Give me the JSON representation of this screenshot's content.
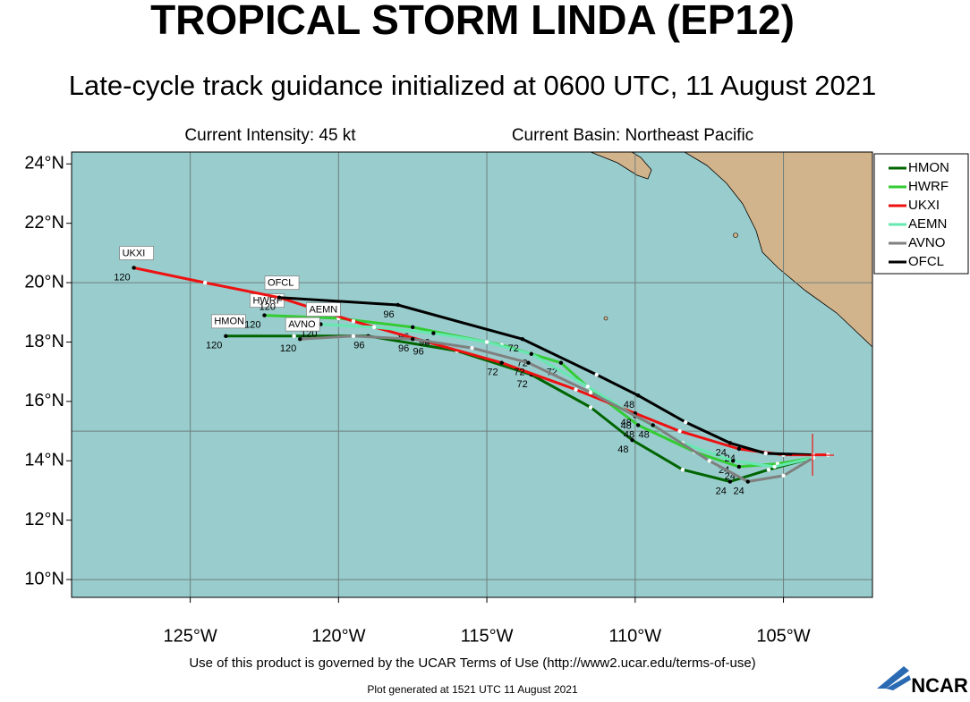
{
  "chart_data": {
    "type": "track",
    "title": "TROPICAL STORM LINDA (EP12)",
    "subtitle": "Late-cycle track guidance initialized at 0600 UTC, 11 August 2021",
    "intensity": "Current Intensity: 45 kt",
    "basin": "Current Basin: Northeast Pacific",
    "xlim": [
      -129,
      -102
    ],
    "ylim": [
      9.4,
      24.4
    ],
    "xticks": [
      {
        "value": -125,
        "label": "125°W"
      },
      {
        "value": -120,
        "label": "120°W"
      },
      {
        "value": -115,
        "label": "115°W"
      },
      {
        "value": -110,
        "label": "110°W"
      },
      {
        "value": -105,
        "label": "105°W"
      }
    ],
    "yticks": [
      {
        "value": 24,
        "label": "24°N"
      },
      {
        "value": 22,
        "label": "22°N"
      },
      {
        "value": 20,
        "label": "20°N"
      },
      {
        "value": 18,
        "label": "18°N"
      },
      {
        "value": 16,
        "label": "16°N"
      },
      {
        "value": 14,
        "label": "14°N"
      },
      {
        "value": 12,
        "label": "12°N"
      },
      {
        "value": 10,
        "label": "10°N"
      }
    ],
    "ygrid": [
      10,
      15,
      20
    ],
    "grid": true,
    "legend": "right",
    "series": [
      {
        "name": "HMON",
        "color": "#006400",
        "x": [
          -104.0,
          -105.5,
          -106.8,
          -108.4,
          -110.1,
          -111.5,
          -113.5,
          -116.0,
          -119.0,
          -121.5,
          -123.8
        ],
        "y": [
          14.1,
          13.7,
          13.3,
          13.7,
          14.7,
          15.8,
          16.9,
          17.7,
          18.2,
          18.2,
          18.2
        ],
        "tau": [
          null,
          null,
          24,
          null,
          48,
          null,
          72,
          null,
          96,
          null,
          120
        ]
      },
      {
        "name": "HWRF",
        "color": "#33cc33",
        "x": [
          -104.0,
          -105.2,
          -106.5,
          -108.0,
          -109.9,
          -111.5,
          -112.5,
          -114.5,
          -117.5,
          -120.0,
          -122.5
        ],
        "y": [
          14.1,
          13.9,
          13.8,
          14.3,
          15.2,
          16.4,
          17.3,
          17.9,
          18.5,
          18.8,
          18.9
        ],
        "tau": [
          null,
          null,
          24,
          null,
          48,
          null,
          72,
          null,
          96,
          null,
          120
        ]
      },
      {
        "name": "UKXI",
        "color": "#ee1111",
        "x": [
          -103.5,
          -105.0,
          -106.5,
          -108.5,
          -110.0,
          -112.0,
          -114.5,
          -117.0,
          -119.5,
          -122.0,
          -124.5,
          -126.9
        ],
        "y": [
          14.2,
          14.2,
          14.4,
          15.0,
          15.6,
          16.4,
          17.3,
          18.0,
          18.7,
          19.5,
          20.0,
          20.5
        ],
        "tau": [
          null,
          null,
          24,
          null,
          48,
          null,
          72,
          96,
          null,
          null,
          null,
          120
        ]
      },
      {
        "name": "AEMN",
        "color": "#66e8b0",
        "x": [
          -104.0,
          -105.3,
          -106.7,
          -108.4,
          -110.0,
          -111.6,
          -113.5,
          -115.0,
          -116.8,
          -118.8,
          -120.6
        ],
        "y": [
          14.1,
          13.8,
          14.0,
          14.6,
          15.5,
          16.5,
          17.6,
          18.0,
          18.3,
          18.5,
          18.6
        ],
        "tau": [
          null,
          null,
          24,
          null,
          48,
          null,
          72,
          null,
          96,
          null,
          120
        ]
      },
      {
        "name": "AVNO",
        "color": "#808080",
        "x": [
          -104.0,
          -105.0,
          -106.2,
          -107.5,
          -109.4,
          -111.5,
          -113.6,
          -115.5,
          -117.5,
          -119.5,
          -121.3
        ],
        "y": [
          14.1,
          13.5,
          13.3,
          14.0,
          15.2,
          16.3,
          17.3,
          17.8,
          18.1,
          18.2,
          18.1
        ],
        "tau": [
          null,
          null,
          24,
          null,
          48,
          null,
          72,
          null,
          96,
          null,
          120
        ]
      },
      {
        "name": "OFCL",
        "color": "#000000",
        "x": [
          -104.0,
          -105.6,
          -106.8,
          -108.3,
          -109.9,
          -111.3,
          -113.8,
          -118.0,
          -122.0
        ],
        "y": [
          14.2,
          14.25,
          14.6,
          15.3,
          16.2,
          16.9,
          18.1,
          19.25,
          19.5
        ],
        "tau": [
          null,
          null,
          24,
          null,
          48,
          null,
          72,
          96,
          120
        ]
      }
    ],
    "footer": "Use of this product is governed by the UCAR Terms of Use (http://www2.ucar.edu/terms-of-use)",
    "generated": "Plot generated at 1521 UTC   11 August 2021",
    "logo": "NCAR"
  }
}
